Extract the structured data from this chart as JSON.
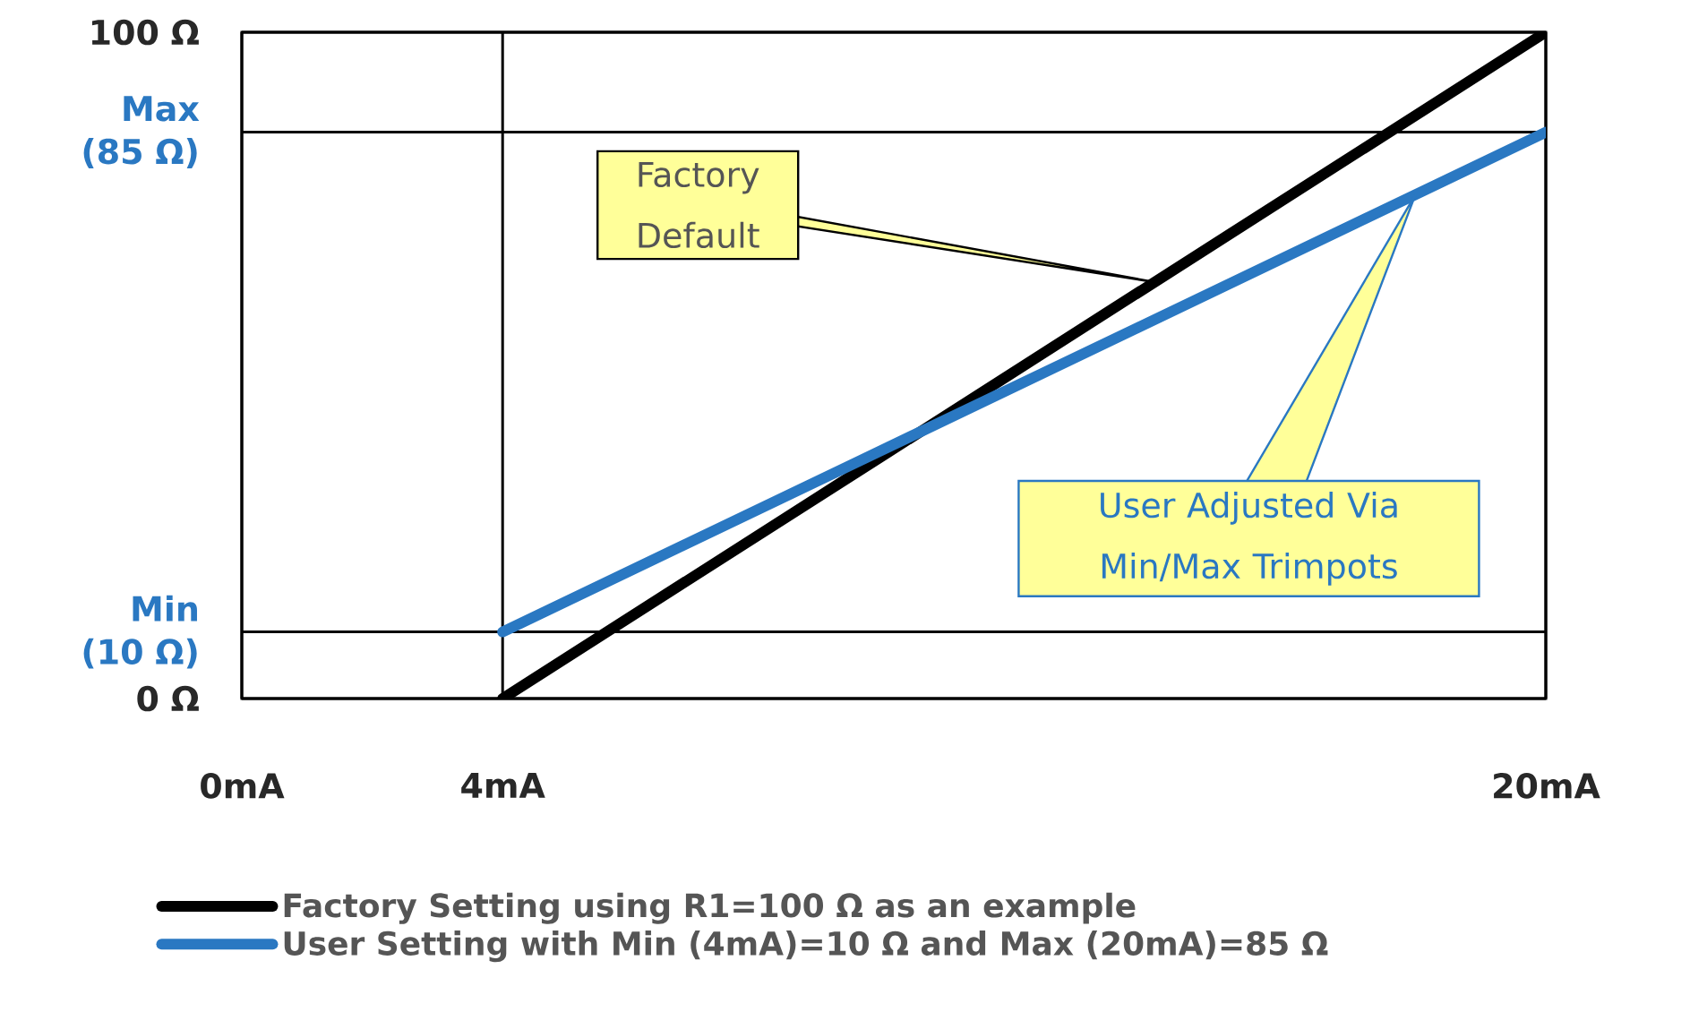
{
  "chart_data": {
    "type": "line",
    "xlim": [
      0,
      20
    ],
    "ylim": [
      0,
      100
    ],
    "xticks": [
      {
        "value": 0,
        "label": "0mA"
      },
      {
        "value": 4,
        "label": "4mA"
      },
      {
        "value": 20,
        "label": "20mA"
      }
    ],
    "yticks": [
      {
        "value": 0,
        "label": "0 Ω"
      },
      {
        "value": 10,
        "label": "Min (10 Ω)"
      },
      {
        "value": 85,
        "label": "Max (85 Ω)"
      },
      {
        "value": 100,
        "label": "100 Ω"
      }
    ],
    "grid": true,
    "legend": "bottom",
    "marker": "none",
    "line_style": "solid",
    "x": [
      4,
      20
    ],
    "series": [
      {
        "name": "Factory Setting using R1=100 Ω as an example",
        "color": "#000000",
        "values": [
          0,
          100
        ]
      },
      {
        "name": "User Setting with Min (4mA)=10 Ω and Max (20mA)=85 Ω",
        "color": "#2a78c2",
        "values": [
          10,
          85
        ]
      }
    ],
    "annotations": [
      {
        "text": "Factory Default",
        "x": 14,
        "y": 62.5
      },
      "User Adjusted Via Min/Max Trimpots"
    ]
  }
}
